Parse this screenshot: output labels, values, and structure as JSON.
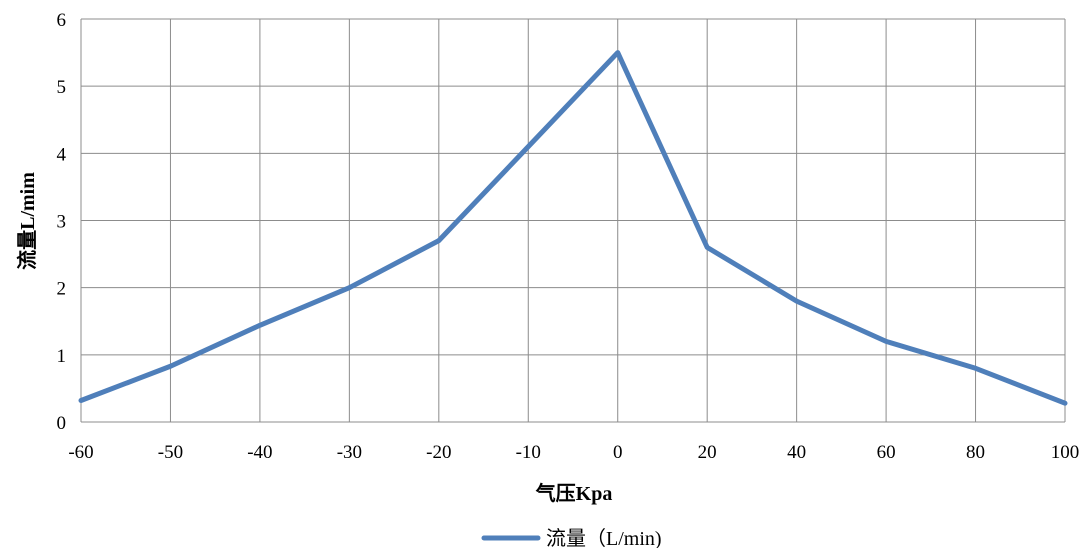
{
  "chart_data": {
    "type": "line",
    "x_categories": [
      "-60",
      "-50",
      "-40",
      "-30",
      "-20",
      "-10",
      "0",
      "20",
      "40",
      "60",
      "80",
      "100"
    ],
    "series": [
      {
        "name": "流量（L/min)",
        "color": "#4F7FBA",
        "values": [
          0.32,
          0.83,
          1.44,
          2.0,
          2.7,
          4.1,
          5.5,
          2.6,
          1.8,
          1.2,
          0.8,
          0.28
        ]
      }
    ],
    "xlabel": "气压Kpa",
    "ylabel": "流量L/mim",
    "ylim": [
      0,
      6
    ],
    "y_ticks": [
      "0",
      "1",
      "2",
      "3",
      "4",
      "5",
      "6"
    ],
    "grid": true,
    "legend_position": "bottom"
  }
}
